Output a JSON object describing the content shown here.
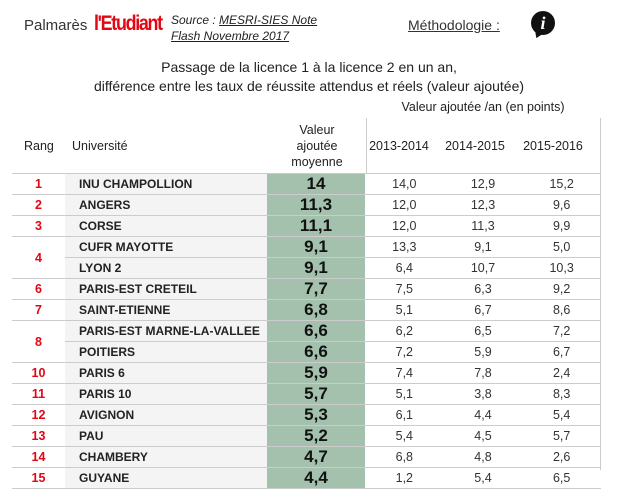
{
  "header": {
    "brand": "Palmarès",
    "logo": "l'Etudiant",
    "source_label": "Source :",
    "source_link_line1": "MESRI-SIES Note",
    "source_link_line2": "Flash Novembre 2017",
    "methodology": "Méthodologie :",
    "info_icon": "i"
  },
  "title": {
    "line1": "Passage de la licence 1 à la licence 2 en un an,",
    "line2": "différence entre les taux de réussite attendus et réels (valeur ajoutée)"
  },
  "table": {
    "group_header": "Valeur ajoutée /an (en points)",
    "columns": {
      "rank": "Rang",
      "university": "Université",
      "avg_line1": "Valeur",
      "avg_line2": "ajoutée",
      "avg_line3": "moyenne",
      "y1": "2013-2014",
      "y2": "2014-2015",
      "y3": "2015-2016"
    },
    "colors": {
      "rank": "#e30613",
      "score_bg": "#a3c1ad"
    },
    "rows": [
      {
        "rank": "1",
        "rowspan": 1,
        "name": "INU CHAMPOLLION",
        "avg": "14",
        "y1": "14,0",
        "y2": "12,9",
        "y3": "15,2"
      },
      {
        "rank": "2",
        "rowspan": 1,
        "name": "ANGERS",
        "avg": "11,3",
        "y1": "12,0",
        "y2": "12,3",
        "y3": "9,6"
      },
      {
        "rank": "3",
        "rowspan": 1,
        "name": "CORSE",
        "avg": "11,1",
        "y1": "12,0",
        "y2": "11,3",
        "y3": "9,9"
      },
      {
        "rank": "4",
        "rowspan": 2,
        "name": "CUFR MAYOTTE",
        "avg": "9,1",
        "y1": "13,3",
        "y2": "9,1",
        "y3": "5,0"
      },
      {
        "rank": "",
        "rowspan": 0,
        "name": "LYON 2",
        "avg": "9,1",
        "y1": "6,4",
        "y2": "10,7",
        "y3": "10,3"
      },
      {
        "rank": "6",
        "rowspan": 1,
        "name": "PARIS-EST CRETEIL",
        "avg": "7,7",
        "y1": "7,5",
        "y2": "6,3",
        "y3": "9,2"
      },
      {
        "rank": "7",
        "rowspan": 1,
        "name": "SAINT-ETIENNE",
        "avg": "6,8",
        "y1": "5,1",
        "y2": "6,7",
        "y3": "8,6"
      },
      {
        "rank": "8",
        "rowspan": 2,
        "name": "PARIS-EST MARNE-LA-VALLEE",
        "avg": "6,6",
        "y1": "6,2",
        "y2": "6,5",
        "y3": "7,2"
      },
      {
        "rank": "",
        "rowspan": 0,
        "name": "POITIERS",
        "avg": "6,6",
        "y1": "7,2",
        "y2": "5,9",
        "y3": "6,7"
      },
      {
        "rank": "10",
        "rowspan": 1,
        "name": "PARIS 6",
        "avg": "5,9",
        "y1": "7,4",
        "y2": "7,8",
        "y3": "2,4"
      },
      {
        "rank": "11",
        "rowspan": 1,
        "name": "PARIS 10",
        "avg": "5,7",
        "y1": "5,1",
        "y2": "3,8",
        "y3": "8,3"
      },
      {
        "rank": "12",
        "rowspan": 1,
        "name": "AVIGNON",
        "avg": "5,3",
        "y1": "6,1",
        "y2": "4,4",
        "y3": "5,4"
      },
      {
        "rank": "13",
        "rowspan": 1,
        "name": "PAU",
        "avg": "5,2",
        "y1": "5,4",
        "y2": "4,5",
        "y3": "5,7"
      },
      {
        "rank": "14",
        "rowspan": 1,
        "name": "CHAMBERY",
        "avg": "4,7",
        "y1": "6,8",
        "y2": "4,8",
        "y3": "2,6"
      },
      {
        "rank": "15",
        "rowspan": 1,
        "name": "GUYANE",
        "avg": "4,4",
        "y1": "1,2",
        "y2": "5,4",
        "y3": "6,5"
      }
    ]
  }
}
